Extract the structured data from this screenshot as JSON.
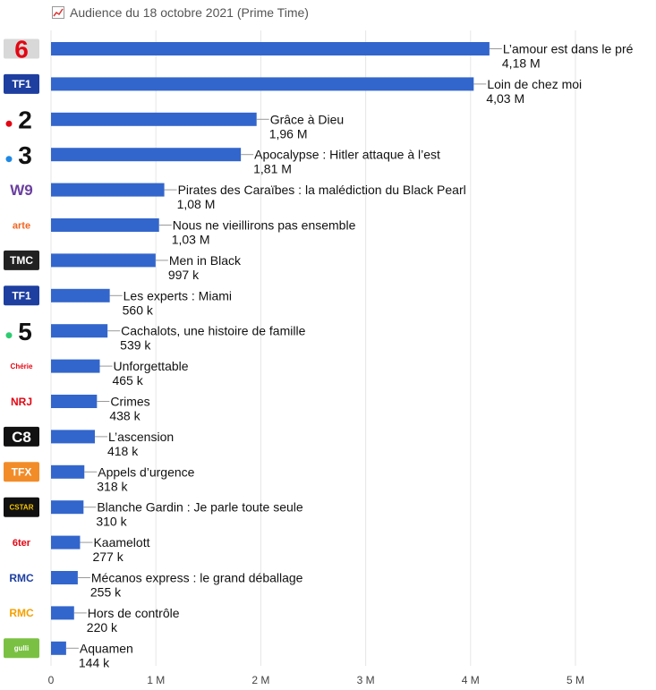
{
  "header": {
    "title": "Audience du 18 octobre 2021 (Prime Time)",
    "icon": "line-chart-icon"
  },
  "colors": {
    "bar": "#3366cc",
    "grid": "#e6e6e6",
    "connector": "#999999"
  },
  "logos": [
    {
      "name": "m6-logo",
      "text": "6",
      "bg": "#d8d8d8",
      "fg": "#e30613"
    },
    {
      "name": "tf1-logo",
      "text": "TF1",
      "bg": "#1e3fa0",
      "fg": "#ffffff"
    },
    {
      "name": "france2-logo",
      "text": "2",
      "bg": "#ffffff",
      "fg": "#111111",
      "dot": "#e30613"
    },
    {
      "name": "france3-logo",
      "text": "3",
      "bg": "#ffffff",
      "fg": "#111111",
      "dot": "#1e88e5"
    },
    {
      "name": "w9-logo",
      "text": "W9",
      "bg": "#ffffff",
      "fg": "#6a3fa0"
    },
    {
      "name": "arte-logo",
      "text": "arte",
      "bg": "#ffffff",
      "fg": "#f26522"
    },
    {
      "name": "tmc-logo",
      "text": "TMC",
      "bg": "#222222",
      "fg": "#ffffff"
    },
    {
      "name": "tf1-series-films-logo",
      "text": "TF1",
      "bg": "#1e3fa0",
      "fg": "#ffffff"
    },
    {
      "name": "france5-logo",
      "text": "5",
      "bg": "#ffffff",
      "fg": "#111111",
      "dot": "#2ecc71"
    },
    {
      "name": "cherie25-logo",
      "text": "Chérie",
      "bg": "#ffffff",
      "fg": "#e30613"
    },
    {
      "name": "nrj12-logo",
      "text": "NRJ",
      "bg": "#ffffff",
      "fg": "#e30613"
    },
    {
      "name": "c8-logo",
      "text": "C8",
      "bg": "#111111",
      "fg": "#ffffff"
    },
    {
      "name": "tfx-logo",
      "text": "TFX",
      "bg": "#f28c28",
      "fg": "#ffffff"
    },
    {
      "name": "cstar-logo",
      "text": "CSTAR",
      "bg": "#111111",
      "fg": "#f5c400"
    },
    {
      "name": "6ter-logo",
      "text": "6ter",
      "bg": "#ffffff",
      "fg": "#e30613"
    },
    {
      "name": "rmc-decouverte-logo",
      "text": "RMC",
      "bg": "#ffffff",
      "fg": "#1e3fa0"
    },
    {
      "name": "rmc-story-logo",
      "text": "RMC",
      "bg": "#ffffff",
      "fg": "#f5a000"
    },
    {
      "name": "gulli-logo",
      "text": "gulli",
      "bg": "#7ac143",
      "fg": "#ffffff"
    }
  ],
  "chart_data": {
    "type": "bar",
    "orientation": "horizontal",
    "xlim": [
      0,
      5500000
    ],
    "xticks": [
      {
        "value": 0,
        "label": "0"
      },
      {
        "value": 1000000,
        "label": "1 M"
      },
      {
        "value": 2000000,
        "label": "2 M"
      },
      {
        "value": 3000000,
        "label": "3 M"
      },
      {
        "value": 4000000,
        "label": "4 M"
      },
      {
        "value": 5000000,
        "label": "5 M"
      }
    ],
    "grid": true,
    "categories": [
      "L’amour est dans le pré",
      "Loin de chez moi",
      "Grâce à Dieu",
      "Apocalypse : Hitler attaque à l’est",
      "Pirates des Caraïbes : la malédiction du Black Pearl",
      "Nous ne vieillirons pas ensemble",
      "Men in Black",
      "Les experts : Miami",
      "Cachalots, une histoire de famille",
      "Unforgettable",
      "Crimes",
      "L’ascension",
      "Appels d’urgence",
      "Blanche Gardin : Je parle toute seule",
      "Kaamelott",
      "Mécanos express : le grand déballage",
      "Hors de contrôle",
      "Aquamen"
    ],
    "values": [
      4180000,
      4030000,
      1960000,
      1810000,
      1080000,
      1030000,
      997000,
      560000,
      539000,
      465000,
      438000,
      418000,
      318000,
      310000,
      277000,
      255000,
      220000,
      144000
    ],
    "value_labels": [
      "4,18 M",
      "4,03 M",
      "1,96 M",
      "1,81 M",
      "1,08 M",
      "1,03 M",
      "997 k",
      "560 k",
      "539 k",
      "465 k",
      "438 k",
      "418 k",
      "318 k",
      "310 k",
      "277 k",
      "255 k",
      "220 k",
      "144 k"
    ]
  }
}
